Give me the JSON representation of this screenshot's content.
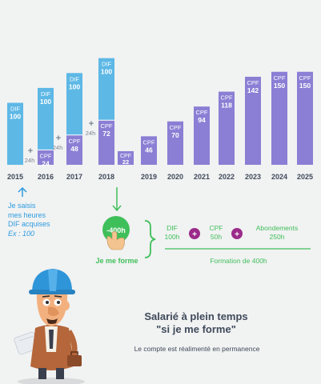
{
  "chart_data": {
    "type": "bar",
    "stacked": true,
    "categories": [
      "2015",
      "2016",
      "2017",
      "2018",
      "2019",
      "2020",
      "2021",
      "2022",
      "2023",
      "2024",
      "2025"
    ],
    "series": [
      {
        "name": "DIF",
        "color": "#5db8e6",
        "labels": [
          "DIF",
          "DIF",
          "DIF",
          "DIF",
          "",
          "",
          "",
          "",
          "",
          "",
          ""
        ],
        "values": [
          100,
          100,
          100,
          100,
          0,
          0,
          0,
          0,
          0,
          0,
          0
        ]
      },
      {
        "name": "CPF",
        "color": "#8a7fd4",
        "labels": [
          "",
          "CPF",
          "CPF",
          "CPF",
          "CPF",
          "CPF",
          "CPF",
          "CPF",
          "CPF",
          "CPF",
          "CPF"
        ],
        "values": [
          0,
          24,
          48,
          72,
          46,
          70,
          94,
          118,
          142,
          150,
          150
        ]
      }
    ],
    "extra_2018": {
      "label": "CPF",
      "value": 22
    },
    "increments": [
      {
        "between": [
          "2015",
          "2016"
        ],
        "plus": "+",
        "label": "24h"
      },
      {
        "between": [
          "2016",
          "2017"
        ],
        "plus": "+",
        "label": "24h"
      },
      {
        "between": [
          "2017",
          "2018"
        ],
        "plus": "+",
        "label": "24h"
      }
    ]
  },
  "note": {
    "line1": "Je saisis",
    "line2": "mes heures",
    "line3": "DIF acquises",
    "line4": "Ex : 100"
  },
  "step": {
    "badge": "-400h",
    "caption": "Je me forme"
  },
  "formula": {
    "items": [
      {
        "label": "DIF",
        "value": "100h"
      },
      {
        "label": "CPF",
        "value": "50h"
      },
      {
        "label": "Abondements",
        "value": "250h"
      }
    ],
    "plus": "+",
    "result": "Formation de 400h"
  },
  "title": {
    "line1": "Salarié à plein temps",
    "line2": "\"si je me forme\""
  },
  "subtitle": "Le compte est réalimenté en permanence",
  "colors": {
    "dif": "#5db8e6",
    "cpf": "#8a7fd4",
    "green": "#3fbf5a",
    "plus_circle": "#9b2b8a",
    "text": "#3f4a5a"
  }
}
